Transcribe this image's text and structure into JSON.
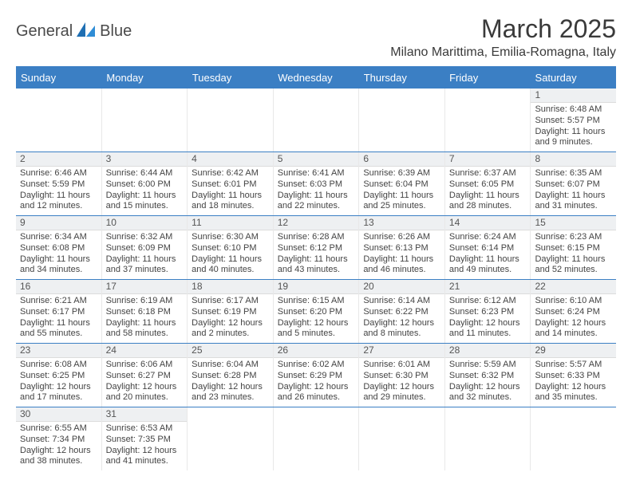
{
  "brand": {
    "name_a": "General",
    "name_b": "Blue"
  },
  "title": "March 2025",
  "location": "Milano Marittima, Emilia-Romagna, Italy",
  "colors": {
    "accent": "#3b7fc4",
    "header_gray": "#eef0f2",
    "divider": "#dcdcdc",
    "text": "#444444"
  },
  "day_headers": [
    "Sunday",
    "Monday",
    "Tuesday",
    "Wednesday",
    "Thursday",
    "Friday",
    "Saturday"
  ],
  "weeks": [
    [
      null,
      null,
      null,
      null,
      null,
      null,
      {
        "n": "1",
        "sr": "6:48 AM",
        "ss": "5:57 PM",
        "dl": "11 hours and 9 minutes."
      }
    ],
    [
      {
        "n": "2",
        "sr": "6:46 AM",
        "ss": "5:59 PM",
        "dl": "11 hours and 12 minutes."
      },
      {
        "n": "3",
        "sr": "6:44 AM",
        "ss": "6:00 PM",
        "dl": "11 hours and 15 minutes."
      },
      {
        "n": "4",
        "sr": "6:42 AM",
        "ss": "6:01 PM",
        "dl": "11 hours and 18 minutes."
      },
      {
        "n": "5",
        "sr": "6:41 AM",
        "ss": "6:03 PM",
        "dl": "11 hours and 22 minutes."
      },
      {
        "n": "6",
        "sr": "6:39 AM",
        "ss": "6:04 PM",
        "dl": "11 hours and 25 minutes."
      },
      {
        "n": "7",
        "sr": "6:37 AM",
        "ss": "6:05 PM",
        "dl": "11 hours and 28 minutes."
      },
      {
        "n": "8",
        "sr": "6:35 AM",
        "ss": "6:07 PM",
        "dl": "11 hours and 31 minutes."
      }
    ],
    [
      {
        "n": "9",
        "sr": "6:34 AM",
        "ss": "6:08 PM",
        "dl": "11 hours and 34 minutes."
      },
      {
        "n": "10",
        "sr": "6:32 AM",
        "ss": "6:09 PM",
        "dl": "11 hours and 37 minutes."
      },
      {
        "n": "11",
        "sr": "6:30 AM",
        "ss": "6:10 PM",
        "dl": "11 hours and 40 minutes."
      },
      {
        "n": "12",
        "sr": "6:28 AM",
        "ss": "6:12 PM",
        "dl": "11 hours and 43 minutes."
      },
      {
        "n": "13",
        "sr": "6:26 AM",
        "ss": "6:13 PM",
        "dl": "11 hours and 46 minutes."
      },
      {
        "n": "14",
        "sr": "6:24 AM",
        "ss": "6:14 PM",
        "dl": "11 hours and 49 minutes."
      },
      {
        "n": "15",
        "sr": "6:23 AM",
        "ss": "6:15 PM",
        "dl": "11 hours and 52 minutes."
      }
    ],
    [
      {
        "n": "16",
        "sr": "6:21 AM",
        "ss": "6:17 PM",
        "dl": "11 hours and 55 minutes."
      },
      {
        "n": "17",
        "sr": "6:19 AM",
        "ss": "6:18 PM",
        "dl": "11 hours and 58 minutes."
      },
      {
        "n": "18",
        "sr": "6:17 AM",
        "ss": "6:19 PM",
        "dl": "12 hours and 2 minutes."
      },
      {
        "n": "19",
        "sr": "6:15 AM",
        "ss": "6:20 PM",
        "dl": "12 hours and 5 minutes."
      },
      {
        "n": "20",
        "sr": "6:14 AM",
        "ss": "6:22 PM",
        "dl": "12 hours and 8 minutes."
      },
      {
        "n": "21",
        "sr": "6:12 AM",
        "ss": "6:23 PM",
        "dl": "12 hours and 11 minutes."
      },
      {
        "n": "22",
        "sr": "6:10 AM",
        "ss": "6:24 PM",
        "dl": "12 hours and 14 minutes."
      }
    ],
    [
      {
        "n": "23",
        "sr": "6:08 AM",
        "ss": "6:25 PM",
        "dl": "12 hours and 17 minutes."
      },
      {
        "n": "24",
        "sr": "6:06 AM",
        "ss": "6:27 PM",
        "dl": "12 hours and 20 minutes."
      },
      {
        "n": "25",
        "sr": "6:04 AM",
        "ss": "6:28 PM",
        "dl": "12 hours and 23 minutes."
      },
      {
        "n": "26",
        "sr": "6:02 AM",
        "ss": "6:29 PM",
        "dl": "12 hours and 26 minutes."
      },
      {
        "n": "27",
        "sr": "6:01 AM",
        "ss": "6:30 PM",
        "dl": "12 hours and 29 minutes."
      },
      {
        "n": "28",
        "sr": "5:59 AM",
        "ss": "6:32 PM",
        "dl": "12 hours and 32 minutes."
      },
      {
        "n": "29",
        "sr": "5:57 AM",
        "ss": "6:33 PM",
        "dl": "12 hours and 35 minutes."
      }
    ],
    [
      {
        "n": "30",
        "sr": "6:55 AM",
        "ss": "7:34 PM",
        "dl": "12 hours and 38 minutes."
      },
      {
        "n": "31",
        "sr": "6:53 AM",
        "ss": "7:35 PM",
        "dl": "12 hours and 41 minutes."
      },
      null,
      null,
      null,
      null,
      null
    ]
  ],
  "labels": {
    "sunrise": "Sunrise:",
    "sunset": "Sunset:",
    "daylight": "Daylight:"
  }
}
